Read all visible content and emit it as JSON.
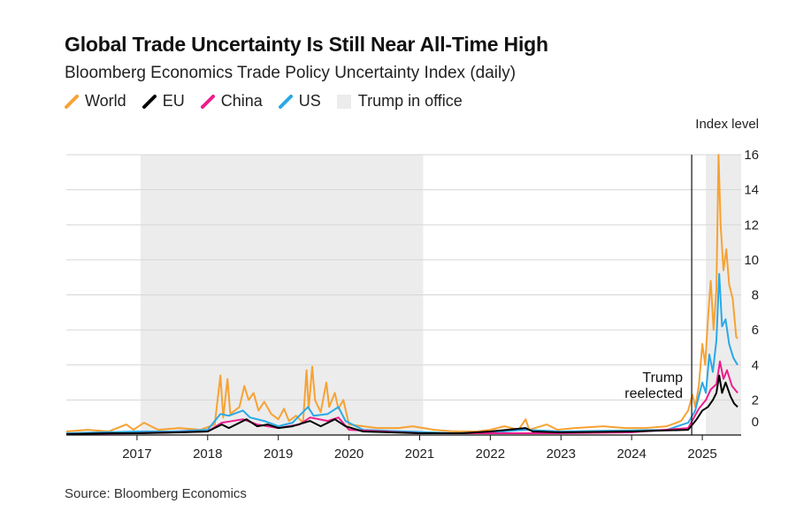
{
  "title": "Global Trade Uncertainty Is Still Near All-Time High",
  "subtitle": "Bloomberg Economics Trade Policy Uncertainty Index (daily)",
  "source": "Source: Bloomberg Economics",
  "legend": [
    {
      "label": "World",
      "color": "#f7a234",
      "kind": "line"
    },
    {
      "label": "EU",
      "color": "#000000",
      "kind": "line"
    },
    {
      "label": "China",
      "color": "#ee1d8e",
      "kind": "line"
    },
    {
      "label": "US",
      "color": "#29a9e6",
      "kind": "line"
    },
    {
      "label": "Trump in office",
      "color": "#ececec",
      "kind": "box"
    }
  ],
  "chart_data": {
    "type": "line",
    "ylabel": "Index level",
    "ylim": [
      0,
      16
    ],
    "yticks": [
      0,
      2,
      4,
      6,
      8,
      10,
      12,
      14,
      16
    ],
    "xlim": [
      2016.0,
      2025.55
    ],
    "xticks": [
      "2017",
      "2018",
      "2019",
      "2020",
      "2021",
      "2022",
      "2023",
      "2024",
      "2025"
    ],
    "grid": true,
    "legend_position": "top-left",
    "shaded_periods": [
      {
        "label": "Trump in office",
        "start": 2017.05,
        "end": 2021.05
      },
      {
        "label": "Trump in office",
        "start": 2025.05,
        "end": 2025.55
      }
    ],
    "annotation": {
      "text": [
        "Trump",
        "reelected"
      ],
      "x": 2024.85
    },
    "series": [
      {
        "name": "World",
        "color": "#f7a234",
        "points": [
          [
            2016.0,
            0.2
          ],
          [
            2016.3,
            0.3
          ],
          [
            2016.6,
            0.2
          ],
          [
            2016.85,
            0.6
          ],
          [
            2016.95,
            0.3
          ],
          [
            2017.1,
            0.7
          ],
          [
            2017.3,
            0.3
          ],
          [
            2017.6,
            0.4
          ],
          [
            2017.9,
            0.3
          ],
          [
            2018.1,
            0.6
          ],
          [
            2018.18,
            3.4
          ],
          [
            2018.22,
            1.0
          ],
          [
            2018.28,
            3.2
          ],
          [
            2018.32,
            1.2
          ],
          [
            2018.45,
            1.6
          ],
          [
            2018.52,
            2.8
          ],
          [
            2018.58,
            2.0
          ],
          [
            2018.65,
            2.4
          ],
          [
            2018.72,
            1.4
          ],
          [
            2018.8,
            1.9
          ],
          [
            2018.9,
            1.2
          ],
          [
            2019.0,
            0.9
          ],
          [
            2019.08,
            1.5
          ],
          [
            2019.15,
            0.8
          ],
          [
            2019.25,
            1.1
          ],
          [
            2019.35,
            0.7
          ],
          [
            2019.4,
            3.7
          ],
          [
            2019.43,
            1.5
          ],
          [
            2019.48,
            3.9
          ],
          [
            2019.52,
            2.0
          ],
          [
            2019.6,
            1.3
          ],
          [
            2019.68,
            3.0
          ],
          [
            2019.72,
            1.6
          ],
          [
            2019.8,
            2.4
          ],
          [
            2019.85,
            1.5
          ],
          [
            2019.92,
            2.0
          ],
          [
            2020.0,
            0.6
          ],
          [
            2020.2,
            0.5
          ],
          [
            2020.4,
            0.4
          ],
          [
            2020.7,
            0.4
          ],
          [
            2020.9,
            0.5
          ],
          [
            2021.2,
            0.3
          ],
          [
            2021.5,
            0.2
          ],
          [
            2021.8,
            0.2
          ],
          [
            2022.0,
            0.3
          ],
          [
            2022.2,
            0.5
          ],
          [
            2022.4,
            0.3
          ],
          [
            2022.5,
            0.9
          ],
          [
            2022.55,
            0.3
          ],
          [
            2022.8,
            0.6
          ],
          [
            2022.95,
            0.3
          ],
          [
            2023.2,
            0.4
          ],
          [
            2023.6,
            0.5
          ],
          [
            2023.9,
            0.4
          ],
          [
            2024.2,
            0.4
          ],
          [
            2024.5,
            0.5
          ],
          [
            2024.7,
            0.8
          ],
          [
            2024.8,
            1.4
          ],
          [
            2024.86,
            2.3
          ],
          [
            2024.9,
            1.6
          ],
          [
            2024.95,
            2.8
          ],
          [
            2025.0,
            5.2
          ],
          [
            2025.04,
            4.0
          ],
          [
            2025.08,
            6.6
          ],
          [
            2025.12,
            8.8
          ],
          [
            2025.16,
            6.0
          ],
          [
            2025.2,
            8.3
          ],
          [
            2025.23,
            16.0
          ],
          [
            2025.26,
            12.0
          ],
          [
            2025.3,
            9.4
          ],
          [
            2025.34,
            10.6
          ],
          [
            2025.38,
            8.6
          ],
          [
            2025.43,
            7.8
          ],
          [
            2025.48,
            5.6
          ],
          [
            2025.5,
            5.5
          ]
        ]
      },
      {
        "name": "US",
        "color": "#29a9e6",
        "points": [
          [
            2016.0,
            0.1
          ],
          [
            2016.5,
            0.15
          ],
          [
            2017.0,
            0.2
          ],
          [
            2017.5,
            0.2
          ],
          [
            2018.0,
            0.3
          ],
          [
            2018.18,
            1.2
          ],
          [
            2018.3,
            1.1
          ],
          [
            2018.5,
            1.4
          ],
          [
            2018.6,
            1.0
          ],
          [
            2018.8,
            0.8
          ],
          [
            2019.0,
            0.5
          ],
          [
            2019.2,
            0.7
          ],
          [
            2019.42,
            1.6
          ],
          [
            2019.5,
            1.1
          ],
          [
            2019.7,
            1.2
          ],
          [
            2019.85,
            1.6
          ],
          [
            2019.95,
            0.8
          ],
          [
            2020.2,
            0.3
          ],
          [
            2020.8,
            0.2
          ],
          [
            2021.5,
            0.1
          ],
          [
            2022.0,
            0.15
          ],
          [
            2022.5,
            0.3
          ],
          [
            2023.0,
            0.2
          ],
          [
            2023.8,
            0.25
          ],
          [
            2024.5,
            0.3
          ],
          [
            2024.8,
            0.7
          ],
          [
            2024.9,
            1.4
          ],
          [
            2025.0,
            3.0
          ],
          [
            2025.05,
            2.4
          ],
          [
            2025.1,
            4.6
          ],
          [
            2025.15,
            3.6
          ],
          [
            2025.2,
            5.4
          ],
          [
            2025.24,
            9.2
          ],
          [
            2025.28,
            6.2
          ],
          [
            2025.33,
            6.6
          ],
          [
            2025.38,
            5.2
          ],
          [
            2025.44,
            4.4
          ],
          [
            2025.5,
            4.0
          ]
        ]
      },
      {
        "name": "China",
        "color": "#ee1d8e",
        "points": [
          [
            2016.0,
            0.05
          ],
          [
            2017.0,
            0.1
          ],
          [
            2018.0,
            0.2
          ],
          [
            2018.2,
            0.7
          ],
          [
            2018.5,
            0.9
          ],
          [
            2018.7,
            0.6
          ],
          [
            2019.0,
            0.4
          ],
          [
            2019.3,
            0.6
          ],
          [
            2019.45,
            1.0
          ],
          [
            2019.7,
            0.8
          ],
          [
            2019.85,
            1.0
          ],
          [
            2020.0,
            0.3
          ],
          [
            2021.0,
            0.1
          ],
          [
            2022.0,
            0.1
          ],
          [
            2023.0,
            0.1
          ],
          [
            2024.0,
            0.15
          ],
          [
            2024.8,
            0.4
          ],
          [
            2024.95,
            1.5
          ],
          [
            2025.05,
            2.0
          ],
          [
            2025.12,
            2.6
          ],
          [
            2025.2,
            2.9
          ],
          [
            2025.25,
            4.2
          ],
          [
            2025.3,
            3.2
          ],
          [
            2025.35,
            3.7
          ],
          [
            2025.42,
            2.8
          ],
          [
            2025.5,
            2.4
          ]
        ]
      },
      {
        "name": "EU",
        "color": "#000000",
        "points": [
          [
            2016.0,
            0.05
          ],
          [
            2016.6,
            0.1
          ],
          [
            2017.0,
            0.1
          ],
          [
            2017.6,
            0.15
          ],
          [
            2018.0,
            0.2
          ],
          [
            2018.2,
            0.6
          ],
          [
            2018.3,
            0.4
          ],
          [
            2018.55,
            0.9
          ],
          [
            2018.7,
            0.5
          ],
          [
            2018.85,
            0.6
          ],
          [
            2019.0,
            0.4
          ],
          [
            2019.2,
            0.5
          ],
          [
            2019.45,
            0.8
          ],
          [
            2019.6,
            0.5
          ],
          [
            2019.8,
            0.9
          ],
          [
            2019.95,
            0.5
          ],
          [
            2020.2,
            0.2
          ],
          [
            2021.0,
            0.1
          ],
          [
            2021.6,
            0.1
          ],
          [
            2022.0,
            0.2
          ],
          [
            2022.5,
            0.4
          ],
          [
            2022.6,
            0.2
          ],
          [
            2023.0,
            0.15
          ],
          [
            2024.0,
            0.2
          ],
          [
            2024.8,
            0.3
          ],
          [
            2024.92,
            0.9
          ],
          [
            2025.0,
            1.4
          ],
          [
            2025.08,
            1.6
          ],
          [
            2025.15,
            2.0
          ],
          [
            2025.2,
            2.4
          ],
          [
            2025.24,
            3.4
          ],
          [
            2025.28,
            2.4
          ],
          [
            2025.33,
            3.0
          ],
          [
            2025.4,
            2.2
          ],
          [
            2025.45,
            1.8
          ],
          [
            2025.5,
            1.6
          ]
        ]
      }
    ]
  }
}
